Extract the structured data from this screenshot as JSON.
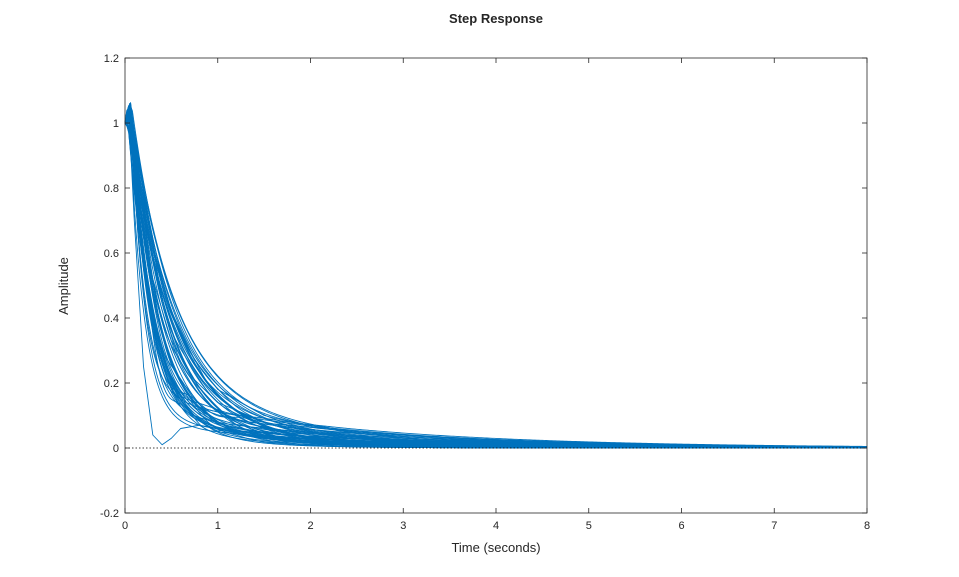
{
  "chart_data": {
    "type": "line",
    "title": "Step Response",
    "xlabel": "Time (seconds)",
    "ylabel": "Amplitude",
    "xlim": [
      0,
      8
    ],
    "ylim": [
      -0.2,
      1.2
    ],
    "xticks": [
      "0",
      "1",
      "2",
      "3",
      "4",
      "5",
      "6",
      "7",
      "8"
    ],
    "yticks": [
      "-0.2",
      "0",
      "0.2",
      "0.4",
      "0.6",
      "0.8",
      "1",
      "1.2"
    ],
    "grid": false,
    "legend": "none",
    "reference_line": {
      "y": 0,
      "style": "dotted"
    },
    "line_color": "#0072BD",
    "series_description": "Ensemble of about 50 overlaid step-response curves starting near 1 at t=0 and decaying toward 0 by t=8",
    "series": [
      {
        "x": [
          0,
          0.05,
          0.1,
          0.2,
          0.3,
          0.5,
          0.75,
          1,
          1.5,
          2,
          3,
          4,
          5,
          6,
          8
        ],
        "y": [
          1.0,
          1.06,
          0.95,
          0.7,
          0.52,
          0.33,
          0.21,
          0.14,
          0.08,
          0.05,
          0.02,
          0.012,
          0.006,
          0.003,
          0.0
        ]
      },
      {
        "x": [
          0,
          0.05,
          0.1,
          0.2,
          0.3,
          0.5,
          0.75,
          1,
          1.5,
          2,
          3,
          4,
          5,
          6,
          8
        ],
        "y": [
          1.0,
          1.01,
          0.86,
          0.55,
          0.36,
          0.18,
          0.1,
          0.06,
          0.03,
          0.02,
          0.01,
          0.005,
          0.003,
          0.001,
          0.0
        ]
      },
      {
        "x": [
          0,
          0.05,
          0.1,
          0.2,
          0.3,
          0.4,
          0.5,
          0.6,
          0.8,
          1,
          1.5,
          2,
          3,
          4,
          8
        ],
        "y": [
          1.0,
          0.98,
          0.7,
          0.25,
          0.04,
          0.01,
          0.03,
          0.06,
          0.07,
          0.06,
          0.04,
          0.025,
          0.01,
          0.004,
          0.0
        ]
      },
      {
        "x": [
          0,
          0.05,
          0.1,
          0.2,
          0.3,
          0.5,
          0.75,
          1,
          1.5,
          2,
          3,
          4,
          5,
          6,
          8
        ],
        "y": [
          1.0,
          1.03,
          0.97,
          0.78,
          0.62,
          0.42,
          0.27,
          0.18,
          0.1,
          0.065,
          0.03,
          0.015,
          0.008,
          0.004,
          0.001
        ]
      }
    ]
  }
}
